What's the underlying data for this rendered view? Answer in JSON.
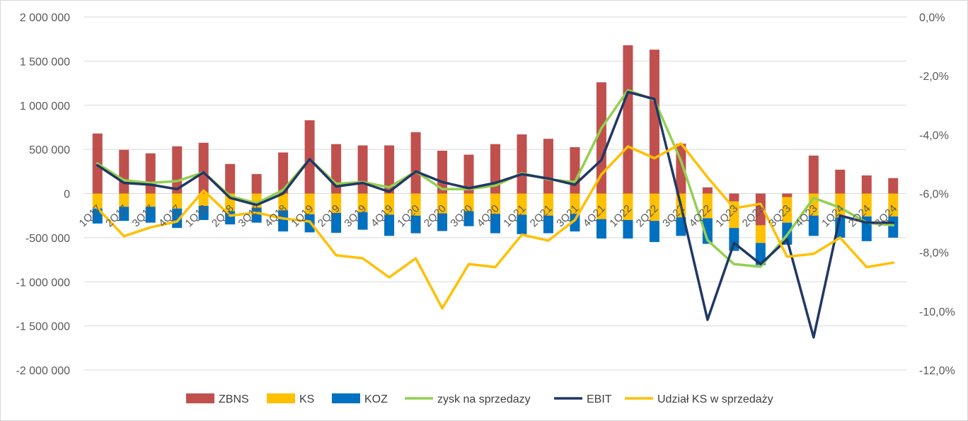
{
  "chart_data": {
    "type": "bar",
    "categories": [
      "1Q17",
      "2Q17",
      "3Q17",
      "4Q17",
      "1Q18",
      "2Q18",
      "3Q18",
      "4Q18",
      "1Q19",
      "2Q19",
      "3Q19",
      "4Q19",
      "1Q20",
      "2Q20",
      "3Q20",
      "4Q20",
      "1Q21",
      "2Q21",
      "3Q21",
      "4Q21",
      "1Q22",
      "2Q22",
      "3Q22",
      "4Q22",
      "1Q23",
      "2Q23",
      "3Q23",
      "4Q23",
      "1Q24",
      "2Q24",
      "3Q24"
    ],
    "y_left": {
      "min": -2000000,
      "max": 2000000,
      "step": 500000,
      "tick_labels": [
        "-2 000 000",
        "-1 500 000",
        "-1 000 000",
        "-500 000",
        "0",
        "500 000",
        "1 000 000",
        "1 500 000",
        "2 000 000"
      ]
    },
    "y_right": {
      "min": -12,
      "max": 0,
      "step": 2,
      "tick_labels": [
        "-12,0%",
        "-10,0%",
        "-8,0%",
        "-6,0%",
        "-4,0%",
        "-2,0%",
        "0,0%"
      ]
    },
    "grid": true,
    "legend_position": "bottom",
    "series": [
      {
        "name": "ZBNS",
        "kind": "bar",
        "axis": "left",
        "color": "#c0504d",
        "values": [
          680000,
          495000,
          455000,
          535000,
          575000,
          335000,
          220000,
          465000,
          830000,
          560000,
          545000,
          545000,
          695000,
          485000,
          440000,
          560000,
          670000,
          620000,
          525000,
          1260000,
          1680000,
          1630000,
          565000,
          70000,
          -90000,
          -360000,
          -40000,
          430000,
          270000,
          205000,
          175000
        ]
      },
      {
        "name": "KS",
        "kind": "bar",
        "axis": "left",
        "color": "#ffc000",
        "values": [
          -170000,
          -150000,
          -150000,
          -170000,
          -140000,
          -200000,
          -160000,
          -190000,
          -235000,
          -220000,
          -210000,
          -240000,
          -250000,
          -225000,
          -200000,
          -230000,
          -240000,
          -250000,
          -230000,
          -290000,
          -300000,
          -310000,
          -270000,
          -280000,
          -300000,
          -200000,
          -290000,
          -250000,
          -270000,
          -260000,
          -260000
        ]
      },
      {
        "name": "KOZ",
        "kind": "bar",
        "axis": "left",
        "color": "#0070c0",
        "values": [
          -170000,
          -160000,
          -180000,
          -220000,
          -160000,
          -150000,
          -170000,
          -240000,
          -205000,
          -225000,
          -200000,
          -240000,
          -200000,
          -200000,
          -170000,
          -220000,
          -220000,
          -200000,
          -200000,
          -220000,
          -210000,
          -240000,
          -210000,
          -290000,
          -260000,
          -250000,
          -250000,
          -230000,
          -230000,
          -280000,
          -240000
        ]
      },
      {
        "name": "zysk na sprzedazy",
        "kind": "line",
        "axis": "left",
        "color": "#92d050",
        "values": [
          340000,
          150000,
          120000,
          140000,
          240000,
          -30000,
          -110000,
          40000,
          390000,
          110000,
          130000,
          70000,
          250000,
          50000,
          50000,
          90000,
          230000,
          160000,
          130000,
          740000,
          1170000,
          1060000,
          370000,
          -530000,
          -800000,
          -830000,
          -470000,
          -50000,
          -160000,
          -330000,
          -360000
        ]
      },
      {
        "name": "EBIT",
        "kind": "line",
        "axis": "left",
        "color": "#203864",
        "values": [
          320000,
          120000,
          100000,
          50000,
          240000,
          -50000,
          -130000,
          0,
          390000,
          80000,
          120000,
          20000,
          250000,
          130000,
          60000,
          120000,
          220000,
          170000,
          100000,
          380000,
          1150000,
          1070000,
          -140000,
          -1430000,
          -560000,
          -800000,
          -520000,
          -1630000,
          -250000,
          -330000,
          -330000
        ]
      },
      {
        "name": "Udział KS w sprzedaży",
        "kind": "line",
        "axis": "right",
        "color": "#ffc000",
        "values": [
          -6.5,
          -7.45,
          -7.15,
          -6.95,
          -5.9,
          -6.75,
          -6.65,
          -6.85,
          -6.95,
          -8.1,
          -8.2,
          -8.85,
          -8.2,
          -9.9,
          -8.4,
          -8.5,
          -7.4,
          -7.6,
          -6.9,
          -5.35,
          -4.4,
          -4.8,
          -4.3,
          -5.45,
          -6.5,
          -6.35,
          -8.15,
          -8.05,
          -7.5,
          -8.5,
          -8.35
        ]
      }
    ]
  }
}
